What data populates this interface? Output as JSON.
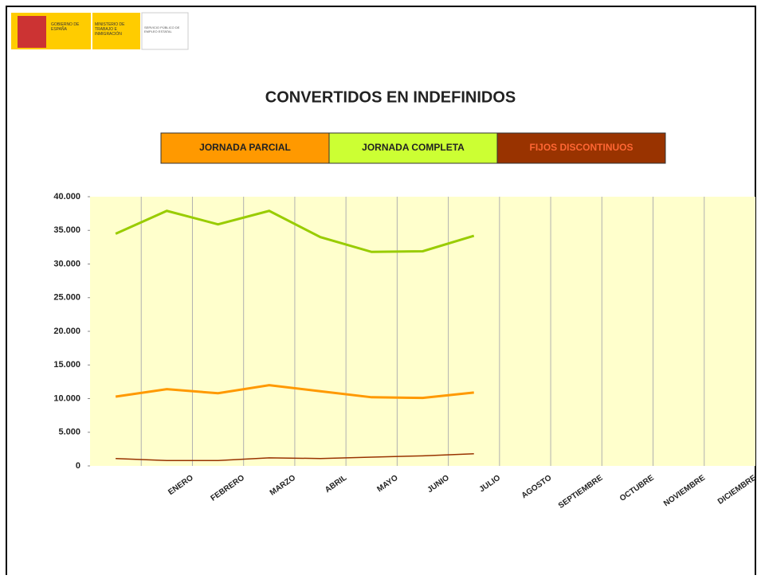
{
  "header": {
    "logo_1": "GOBIERNO DE ESPAÑA",
    "logo_2": "MINISTERIO DE TRABAJO E INMIGRACIÓN",
    "logo_3": "SERVICIO PÚBLICO DE EMPLEO ESTATAL"
  },
  "chart_data": {
    "type": "line",
    "title": "CONVERTIDOS EN INDEFINIDOS",
    "categories": [
      null,
      "ENERO",
      "FEBRERO",
      "MARZO",
      "ABRIL",
      "MAYO",
      "JUNIO",
      "JULIO",
      "AGOSTO",
      "SEPTIEMBRE",
      "OCTUBRE",
      "NOVIEMBRE",
      "DICIEMBRE"
    ],
    "series": [
      {
        "name": "JORNADA PARCIAL",
        "color": "#ff9900",
        "values": [
          10300,
          11400,
          10800,
          12000,
          11100,
          10200,
          10100,
          10900,
          null,
          null,
          null,
          null,
          null
        ]
      },
      {
        "name": "JORNADA COMPLETA",
        "color": "#99cc00",
        "values": [
          34500,
          37900,
          35900,
          37900,
          34000,
          31800,
          31900,
          34200,
          null,
          null,
          null,
          null,
          null
        ]
      },
      {
        "name": "FIJOS DISCONTINUOS",
        "color": "#993300",
        "values": [
          1100,
          800,
          800,
          1200,
          1100,
          1300,
          1500,
          1800,
          null,
          null,
          null,
          null,
          null
        ]
      }
    ],
    "ylim": [
      0,
      40000
    ],
    "yticks": [
      0,
      {
        "value": 5000,
        "label": "5.000"
      },
      {
        "value": 10000,
        "label": "10.000"
      },
      {
        "value": 15000,
        "label": "15.000"
      },
      {
        "value": 20000,
        "label": "20.000"
      },
      {
        "value": 25000,
        "label": "25.000"
      },
      {
        "value": 30000,
        "label": "30.000"
      },
      {
        "value": 35000,
        "label": "35.000"
      },
      {
        "value": 40000,
        "label": "40.000"
      }
    ],
    "grid": "x",
    "legend": "top"
  }
}
